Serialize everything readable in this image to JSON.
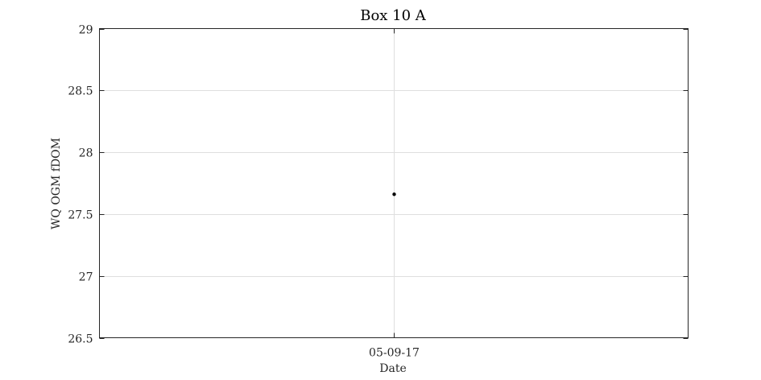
{
  "chart_data": {
    "type": "scatter",
    "title": "Box 10 A",
    "xlabel": "Date",
    "ylabel": "WQ OGM fDOM",
    "x_categories": [
      "05-09-17"
    ],
    "points": [
      {
        "x": "05-09-17",
        "y": 27.66
      }
    ],
    "ylim": [
      26.5,
      29
    ],
    "yticks": [
      26.5,
      27,
      27.5,
      28,
      28.5,
      29
    ],
    "ytick_labels": [
      "26.5",
      "27",
      "27.5",
      "28",
      "28.5",
      "29"
    ],
    "xticks": [
      "05-09-17"
    ],
    "grid": true,
    "marker_color": "#000000"
  }
}
